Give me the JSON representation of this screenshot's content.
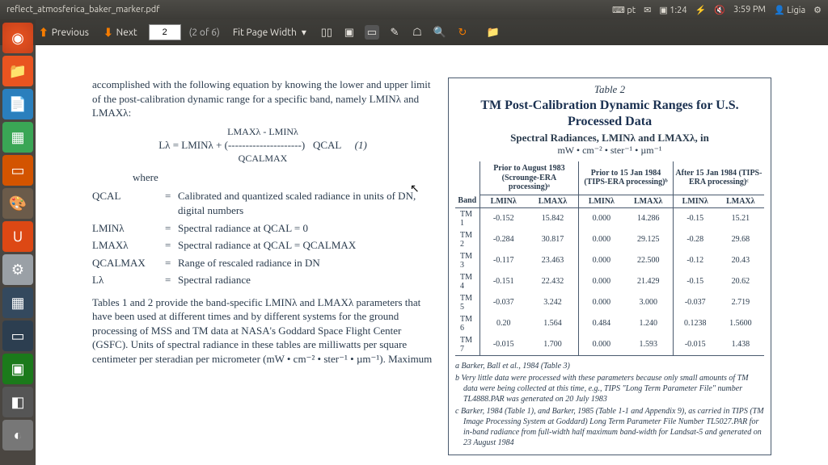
{
  "topbar": {
    "title": "reflect_atmosferica_baker_marker.pdf",
    "indicators": {
      "keyboard": "pt",
      "battery": "1:24",
      "time": "3:59 PM",
      "user": "Ligia"
    }
  },
  "toolbar": {
    "previous": "Previous",
    "next": "Next",
    "page_current": "2",
    "page_total": "(2 of 6)",
    "fit": "Fit Page Width"
  },
  "doc": {
    "para1": "accomplished with the following equation by knowing the lower and upper limit of the post-calibration dynamic range for a specific band, namely LMINλ and LMAXλ:",
    "eq_num": "LMAXλ - LMINλ",
    "eq_left": "Lλ = LMINλ + (---------------------)",
    "eq_den": "QCALMAX",
    "eq_right": "QCAL",
    "eq_ref": "(1)",
    "where": "where",
    "defs": [
      {
        "t": "QCAL",
        "d": "Calibrated and quantized scaled radiance in units of DN, digital numbers"
      },
      {
        "t": "LMINλ",
        "d": "Spectral radiance at QCAL = 0"
      },
      {
        "t": "LMAXλ",
        "d": "Spectral radiance at QCAL = QCALMAX"
      },
      {
        "t": "QCALMAX",
        "d": "Range of rescaled radiance in DN"
      },
      {
        "t": "Lλ",
        "d": "Spectral radiance"
      }
    ],
    "para2": "Tables 1 and 2 provide the band-specific LMINλ and LMAXλ parameters that have been used at different times and by different systems for the ground processing of MSS and TM data at NASA's Goddard Space Flight Center (GSFC). Units of spectral radiance in these tables are milliwatts per square centimeter per steradian per micrometer (mW • cm⁻² • ster⁻¹ • µm⁻¹). Maximum"
  },
  "table": {
    "caption": "Table 2",
    "title": "TM Post-Calibration Dynamic Ranges for U.S. Processed Data",
    "subtitle": "Spectral Radiances, LMINλ and LMAXλ, in",
    "units": "mW • cm⁻² • ster⁻¹ • µm⁻¹",
    "groups": [
      "Prior to August 1983 (Scrounge-ERA processing)ᵃ",
      "Prior to 15 Jan 1984 (TIPS-ERA processing)ᵇ",
      "After 15 Jan 1984 (TIPS-ERA processing)ᶜ"
    ],
    "cols": [
      "Band",
      "LMINλ",
      "LMAXλ",
      "LMINλ",
      "LMAXλ",
      "LMINλ",
      "LMAXλ"
    ],
    "rows": [
      [
        "TM 1",
        "-0.152",
        "15.842",
        "0.000",
        "14.286",
        "-0.15",
        "15.21"
      ],
      [
        "TM 2",
        "-0.284",
        "30.817",
        "0.000",
        "29.125",
        "-0.28",
        "29.68"
      ],
      [
        "TM 3",
        "-0.117",
        "23.463",
        "0.000",
        "22.500",
        "-0.12",
        "20.43"
      ],
      [
        "TM 4",
        "-0.151",
        "22.432",
        "0.000",
        "21.429",
        "-0.15",
        "20.62"
      ],
      [
        "TM 5",
        "-0.037",
        "3.242",
        "0.000",
        "3.000",
        "-0.037",
        "2.719"
      ],
      [
        "TM 6",
        "0.20",
        "1.564",
        "0.484",
        "1.240",
        "0.1238",
        "1.5600"
      ],
      [
        "TM 7",
        "-0.015",
        "1.700",
        "0.000",
        "1.593",
        "-0.015",
        "1.438"
      ]
    ],
    "notes": [
      "a  Barker, Ball et al., 1984 (Table 3)",
      "b  Very little data were processed with these parameters because only small amounts of TM data were being collected at this time, e.g., TIPS \"Long Term Parameter File\" number TL4888.PAR was generated on 20 July 1983",
      "c  Barker, 1984 (Table 1), and Barker, 1985 (Table 1-1 and Appendix 9), as carried in TIPS (TM Image Processing System at Goddard) Long Term Parameter File Number TL5027.PAR for in-band radiance from full-width half maximum band-width for Landsat-5 and generated on 23 August 1984"
    ]
  },
  "colors": {
    "accent": "#f57c00",
    "panel": "#3c3b37",
    "text": "#2a3b4d"
  }
}
